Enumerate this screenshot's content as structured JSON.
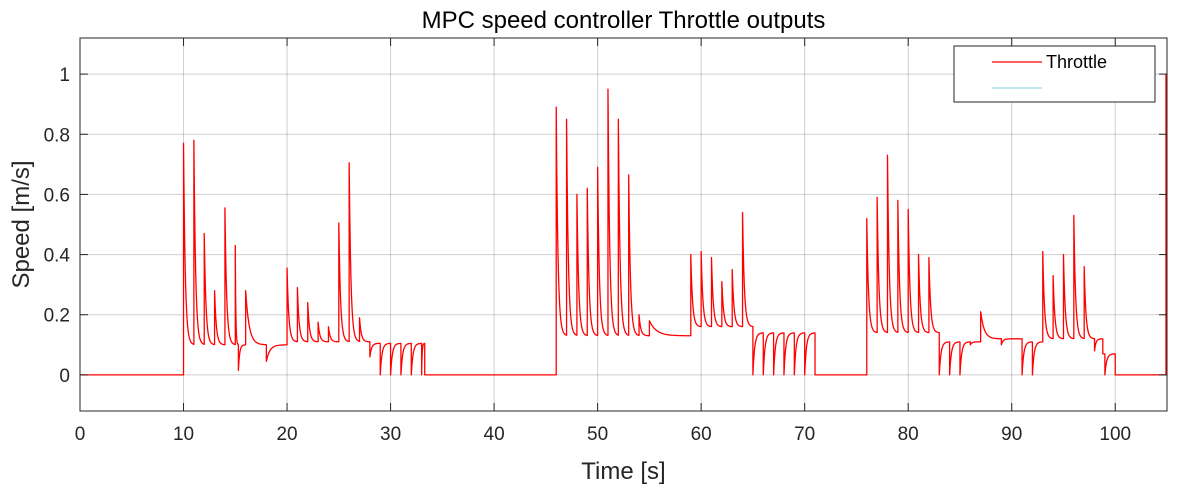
{
  "chart_data": {
    "type": "line",
    "title": "MPC speed controller Throttle outputs",
    "xlabel": "Time [s]",
    "ylabel": "Speed [m/s]",
    "xlim": [
      0,
      105
    ],
    "ylim": [
      -0.12,
      1.12
    ],
    "xticks": [
      0,
      10,
      20,
      30,
      40,
      50,
      60,
      70,
      80,
      90,
      100
    ],
    "yticks": [
      0,
      0.2,
      0.4,
      0.6,
      0.8,
      1
    ],
    "xtick_labels": [
      "0",
      "10",
      "20",
      "30",
      "40",
      "50",
      "60",
      "70",
      "80",
      "90",
      "100"
    ],
    "ytick_labels": [
      "0",
      "0.2",
      "0.4",
      "0.6",
      "0.8",
      "1"
    ],
    "grid": true,
    "legend_position": "top-right",
    "legend": [
      "Throttle",
      ""
    ],
    "series": [
      {
        "name": "Throttle",
        "color": "#ff0000",
        "segments": [
          {
            "start": 0,
            "end": 10,
            "base": 0,
            "peaks": []
          },
          {
            "start": 10,
            "end": 15.3,
            "base": 0.1,
            "peaks": [
              [
                10,
                0.77
              ],
              [
                11,
                0.78
              ],
              [
                12,
                0.47
              ],
              [
                13,
                0.28
              ],
              [
                14,
                0.555
              ],
              [
                15,
                0.43
              ]
            ]
          },
          {
            "start": 15.3,
            "end": 18,
            "base": 0.1,
            "peaks": [
              [
                15.3,
                0.015
              ],
              [
                16,
                0.28
              ]
            ]
          },
          {
            "start": 18,
            "end": 20,
            "base": 0.1,
            "peaks": [
              [
                18,
                0.045
              ]
            ]
          },
          {
            "start": 20,
            "end": 28,
            "base": 0.11,
            "peaks": [
              [
                20,
                0.355
              ],
              [
                21,
                0.29
              ],
              [
                22,
                0.24
              ],
              [
                23,
                0.175
              ],
              [
                24,
                0.16
              ],
              [
                25,
                0.505
              ],
              [
                26,
                0.705
              ],
              [
                27,
                0.19
              ]
            ]
          },
          {
            "start": 28,
            "end": 33.3,
            "base": 0.105,
            "peaks": [
              [
                28,
                0.06
              ],
              [
                29,
                0.0
              ],
              [
                30,
                0.0
              ],
              [
                31,
                0.0
              ],
              [
                32,
                0.0
              ],
              [
                33,
                0.0
              ]
            ]
          },
          {
            "start": 33.3,
            "end": 46,
            "base": 0,
            "peaks": []
          },
          {
            "start": 46,
            "end": 59,
            "base": 0.13,
            "peaks": [
              [
                46,
                0.89
              ],
              [
                47,
                0.85
              ],
              [
                48,
                0.6
              ],
              [
                49,
                0.62
              ],
              [
                50,
                0.69
              ],
              [
                51,
                0.95
              ],
              [
                52,
                0.85
              ],
              [
                53,
                0.665
              ],
              [
                54,
                0.2
              ],
              [
                55,
                0.18
              ]
            ]
          },
          {
            "start": 59,
            "end": 65,
            "base": 0.16,
            "peaks": [
              [
                59,
                0.4
              ],
              [
                60,
                0.41
              ],
              [
                61,
                0.39
              ],
              [
                62,
                0.31
              ],
              [
                63,
                0.35
              ],
              [
                64,
                0.54
              ]
            ]
          },
          {
            "start": 65,
            "end": 71,
            "base": 0.14,
            "peaks": [
              [
                65,
                0.0
              ],
              [
                66,
                0.0
              ],
              [
                67,
                0.0
              ],
              [
                68,
                0.0
              ],
              [
                69,
                0.0
              ],
              [
                70,
                0.0
              ]
            ]
          },
          {
            "start": 71,
            "end": 76,
            "base": 0,
            "peaks": []
          },
          {
            "start": 76,
            "end": 83,
            "base": 0.14,
            "peaks": [
              [
                76,
                0.52
              ],
              [
                77,
                0.59
              ],
              [
                78,
                0.73
              ],
              [
                79,
                0.58
              ],
              [
                80,
                0.55
              ],
              [
                81,
                0.4
              ],
              [
                82,
                0.39
              ]
            ]
          },
          {
            "start": 83,
            "end": 87,
            "base": 0.11,
            "peaks": [
              [
                83,
                0.0
              ],
              [
                84,
                0.0
              ],
              [
                85,
                0.0
              ],
              [
                86,
                0.1
              ]
            ]
          },
          {
            "start": 87,
            "end": 91,
            "base": 0.12,
            "peaks": [
              [
                87,
                0.21
              ],
              [
                89,
                0.1
              ],
              [
                90,
                0.12
              ]
            ]
          },
          {
            "start": 91,
            "end": 93,
            "base": 0.11,
            "peaks": [
              [
                91,
                0.0
              ],
              [
                92,
                0.0
              ]
            ]
          },
          {
            "start": 93,
            "end": 98.8,
            "base": 0.12,
            "peaks": [
              [
                93,
                0.41
              ],
              [
                94,
                0.33
              ],
              [
                95,
                0.4
              ],
              [
                96,
                0.53
              ],
              [
                97,
                0.36
              ],
              [
                98,
                0.08
              ]
            ]
          },
          {
            "start": 98.8,
            "end": 100,
            "base": 0.07,
            "peaks": [
              [
                99,
                0.0
              ]
            ]
          },
          {
            "start": 100,
            "end": 104.9,
            "base": 0,
            "peaks": []
          },
          {
            "start": 104.9,
            "end": 105,
            "base": 1.0,
            "peaks": []
          }
        ]
      },
      {
        "name": "",
        "color": "#9bd6ee",
        "segments": []
      }
    ]
  }
}
